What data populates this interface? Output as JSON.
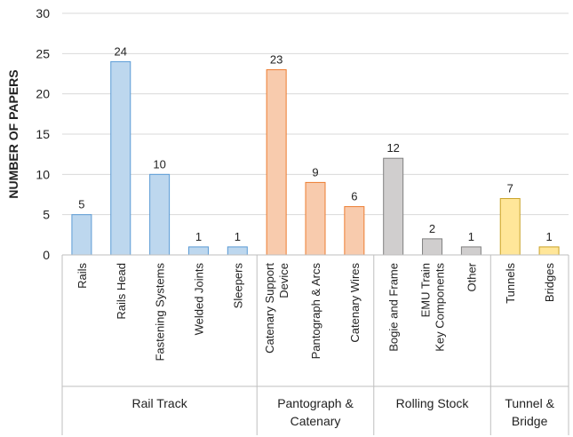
{
  "chart_data": {
    "type": "bar",
    "ylabel": "NUMBER OF PAPERS",
    "ylim": [
      0,
      30
    ],
    "yticks": [
      0,
      5,
      10,
      15,
      20,
      25,
      30
    ],
    "grid": true,
    "categories": [
      {
        "label": "Rails",
        "value": 5,
        "group": 0
      },
      {
        "label": "Rails Head",
        "value": 24,
        "group": 0
      },
      {
        "label": "Fastening Systems",
        "value": 10,
        "group": 0
      },
      {
        "label": "Welded Joints",
        "value": 1,
        "group": 0
      },
      {
        "label": "Sleepers",
        "value": 1,
        "group": 0
      },
      {
        "label": "Catenary Support\nDevice",
        "value": 23,
        "group": 1
      },
      {
        "label": "Pantograph & Arcs",
        "value": 9,
        "group": 1
      },
      {
        "label": "Catenary Wires",
        "value": 6,
        "group": 1
      },
      {
        "label": "Bogie and Frame",
        "value": 12,
        "group": 2
      },
      {
        "label": "EMU Train\nKey Components",
        "value": 2,
        "group": 2
      },
      {
        "label": "Other",
        "value": 1,
        "group": 2
      },
      {
        "label": "Tunnels",
        "value": 7,
        "group": 3
      },
      {
        "label": "Bridges",
        "value": 1,
        "group": 3
      }
    ],
    "groups": [
      {
        "label": "Rail Track",
        "color": "#bdd7ee",
        "stroke": "#5b9bd5"
      },
      {
        "label": "Pantograph &\nCatenary",
        "color": "#f8cbad",
        "stroke": "#ed7d31"
      },
      {
        "label": "Rolling Stock",
        "color": "#d0cece",
        "stroke": "#808080"
      },
      {
        "label": "Tunnel &\nBridge",
        "color": "#ffe699",
        "stroke": "#c9a227"
      }
    ]
  }
}
